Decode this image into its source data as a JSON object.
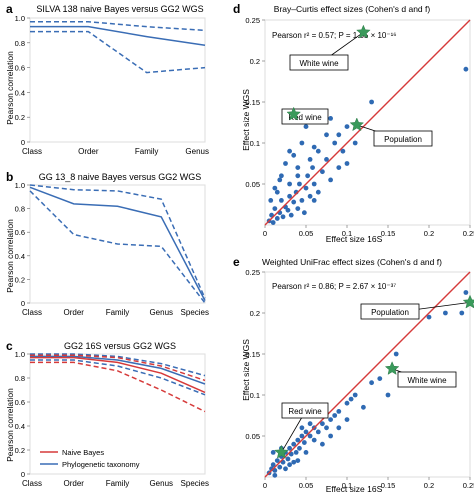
{
  "colors": {
    "blue": "#3a6db5",
    "red": "#d63a3a",
    "dot": "#2f6ab3",
    "star": "#3a9a5b",
    "frame": "#dddddd",
    "grid": "#eeeeee"
  },
  "chart_data": [
    {
      "panel": "a",
      "type": "line",
      "title": "SILVA 138 naive Bayes versus GG2 WGS",
      "ylabel": "Pearson correlation",
      "categories": [
        "Class",
        "Order",
        "Family",
        "Genus"
      ],
      "ylim": [
        0,
        1.0
      ],
      "yticks": [
        "0",
        "0.2",
        "0.4",
        "0.6",
        "0.8",
        "1.0"
      ],
      "series": [
        {
          "group": "phylo",
          "style": "solid",
          "values": [
            0.93,
            0.93,
            0.85,
            0.78
          ]
        },
        {
          "group": "phylo",
          "style": "dashed",
          "values": [
            0.97,
            0.97,
            0.93,
            0.9
          ]
        },
        {
          "group": "phylo",
          "style": "dashed",
          "values": [
            0.89,
            0.89,
            0.56,
            0.6
          ]
        }
      ]
    },
    {
      "panel": "b",
      "type": "line",
      "title": "GG 13_8 naive Bayes versus GG2 WGS",
      "ylabel": "Pearson correlation",
      "categories": [
        "Class",
        "Order",
        "Family",
        "Genus",
        "Species"
      ],
      "ylim": [
        0,
        1.0
      ],
      "yticks": [
        "0",
        "0.2",
        "0.4",
        "0.6",
        "0.8",
        "1.0"
      ],
      "series": [
        {
          "group": "phylo",
          "style": "solid",
          "values": [
            0.98,
            0.84,
            0.82,
            0.73,
            0.02
          ]
        },
        {
          "group": "phylo",
          "style": "dashed",
          "values": [
            1.0,
            0.96,
            0.95,
            0.88,
            0.04
          ]
        },
        {
          "group": "phylo",
          "style": "dashed",
          "values": [
            0.95,
            0.58,
            0.5,
            0.48,
            0.0
          ]
        }
      ]
    },
    {
      "panel": "c",
      "type": "line",
      "title": "GG2 16S versus GG2 WGS",
      "ylabel": "Pearson correlation",
      "categories": [
        "Class",
        "Order",
        "Family",
        "Genus",
        "Species"
      ],
      "ylim": [
        0,
        1.0
      ],
      "yticks": [
        "0",
        "0.2",
        "0.4",
        "0.6",
        "0.8",
        "1.0"
      ],
      "legend": [
        {
          "label": "Naive Bayes",
          "group": "nb"
        },
        {
          "label": "Phylogenetic taxonomy",
          "group": "phylo"
        }
      ],
      "series": [
        {
          "group": "phylo",
          "style": "solid",
          "values": [
            0.98,
            0.98,
            0.95,
            0.88,
            0.75
          ]
        },
        {
          "group": "phylo",
          "style": "dashed",
          "values": [
            1.0,
            1.0,
            0.98,
            0.92,
            0.82
          ]
        },
        {
          "group": "phylo",
          "style": "dashed",
          "values": [
            0.95,
            0.95,
            0.9,
            0.8,
            0.66
          ]
        },
        {
          "group": "nb",
          "style": "solid",
          "values": [
            0.97,
            0.97,
            0.93,
            0.84,
            0.68
          ]
        },
        {
          "group": "nb",
          "style": "dashed",
          "values": [
            0.99,
            0.99,
            0.97,
            0.9,
            0.78
          ]
        },
        {
          "group": "nb",
          "style": "dashed",
          "values": [
            0.93,
            0.93,
            0.86,
            0.7,
            0.52
          ]
        }
      ]
    },
    {
      "panel": "d",
      "type": "scatter",
      "title": "Bray–Curtis effect sizes (Cohen's d and f)",
      "xlabel": "Effect size 16S",
      "ylabel": "Effect size WGS",
      "xlim": [
        0,
        0.25
      ],
      "ylim": [
        0,
        0.25
      ],
      "xticks": [
        0,
        0.05,
        0.1,
        0.15,
        0.2,
        0.25
      ],
      "yticks": [
        0.05,
        0.1,
        0.15,
        0.2,
        0.25
      ],
      "stat_text": "Pearson r² = 0.57; P = 1.35 × 10⁻¹⁶",
      "points": [
        [
          0.005,
          0.005
        ],
        [
          0.008,
          0.012
        ],
        [
          0.01,
          0.003
        ],
        [
          0.012,
          0.02
        ],
        [
          0.015,
          0.008
        ],
        [
          0.018,
          0.015
        ],
        [
          0.02,
          0.03
        ],
        [
          0.022,
          0.01
        ],
        [
          0.025,
          0.022
        ],
        [
          0.028,
          0.018
        ],
        [
          0.03,
          0.035
        ],
        [
          0.032,
          0.012
        ],
        [
          0.035,
          0.028
        ],
        [
          0.038,
          0.04
        ],
        [
          0.04,
          0.02
        ],
        [
          0.042,
          0.05
        ],
        [
          0.045,
          0.03
        ],
        [
          0.048,
          0.015
        ],
        [
          0.05,
          0.045
        ],
        [
          0.052,
          0.06
        ],
        [
          0.055,
          0.035
        ],
        [
          0.058,
          0.07
        ],
        [
          0.06,
          0.05
        ],
        [
          0.065,
          0.04
        ],
        [
          0.07,
          0.065
        ],
        [
          0.075,
          0.08
        ],
        [
          0.08,
          0.055
        ],
        [
          0.085,
          0.1
        ],
        [
          0.09,
          0.07
        ],
        [
          0.095,
          0.09
        ],
        [
          0.1,
          0.075
        ],
        [
          0.02,
          0.06
        ],
        [
          0.025,
          0.075
        ],
        [
          0.03,
          0.09
        ],
        [
          0.035,
          0.085
        ],
        [
          0.012,
          0.045
        ],
        [
          0.018,
          0.055
        ],
        [
          0.045,
          0.1
        ],
        [
          0.05,
          0.12
        ],
        [
          0.06,
          0.095
        ],
        [
          0.075,
          0.11
        ],
        [
          0.08,
          0.13
        ],
        [
          0.13,
          0.15
        ],
        [
          0.245,
          0.19
        ],
        [
          0.1,
          0.12
        ],
        [
          0.06,
          0.03
        ],
        [
          0.007,
          0.03
        ],
        [
          0.015,
          0.04
        ],
        [
          0.04,
          0.07
        ],
        [
          0.055,
          0.08
        ],
        [
          0.065,
          0.09
        ],
        [
          0.11,
          0.1
        ],
        [
          0.09,
          0.11
        ],
        [
          0.03,
          0.05
        ],
        [
          0.04,
          0.06
        ]
      ],
      "regression": [
        [
          0,
          0
        ],
        [
          0.25,
          0.25
        ]
      ],
      "highlights": [
        {
          "label": "White wine",
          "x": 0.12,
          "y": 0.235
        },
        {
          "label": "Red wine",
          "x": 0.035,
          "y": 0.135
        },
        {
          "label": "Population",
          "x": 0.112,
          "y": 0.122
        }
      ]
    },
    {
      "panel": "e",
      "type": "scatter",
      "title": "Weighted UniFrac effect sizes (Cohen's d and f)",
      "xlabel": "Effect size 16S",
      "ylabel": "Effect size WGS",
      "xlim": [
        0,
        0.25
      ],
      "ylim": [
        0,
        0.25
      ],
      "xticks": [
        0,
        0.05,
        0.1,
        0.15,
        0.2,
        0.25
      ],
      "yticks": [
        0.05,
        0.1,
        0.15,
        0.2,
        0.25
      ],
      "stat_text": "Pearson r² = 0.86; P = 2.67 × 10⁻³⁷",
      "points": [
        [
          0.005,
          0.005
        ],
        [
          0.008,
          0.01
        ],
        [
          0.01,
          0.015
        ],
        [
          0.012,
          0.008
        ],
        [
          0.015,
          0.02
        ],
        [
          0.018,
          0.012
        ],
        [
          0.02,
          0.025
        ],
        [
          0.022,
          0.018
        ],
        [
          0.025,
          0.03
        ],
        [
          0.028,
          0.022
        ],
        [
          0.03,
          0.035
        ],
        [
          0.032,
          0.028
        ],
        [
          0.035,
          0.04
        ],
        [
          0.038,
          0.03
        ],
        [
          0.04,
          0.045
        ],
        [
          0.042,
          0.035
        ],
        [
          0.045,
          0.05
        ],
        [
          0.048,
          0.042
        ],
        [
          0.05,
          0.055
        ],
        [
          0.055,
          0.05
        ],
        [
          0.06,
          0.06
        ],
        [
          0.065,
          0.055
        ],
        [
          0.07,
          0.065
        ],
        [
          0.075,
          0.06
        ],
        [
          0.08,
          0.07
        ],
        [
          0.085,
          0.075
        ],
        [
          0.09,
          0.08
        ],
        [
          0.1,
          0.09
        ],
        [
          0.11,
          0.1
        ],
        [
          0.13,
          0.115
        ],
        [
          0.14,
          0.12
        ],
        [
          0.16,
          0.15
        ],
        [
          0.18,
          0.2
        ],
        [
          0.2,
          0.195
        ],
        [
          0.22,
          0.2
        ],
        [
          0.245,
          0.225
        ],
        [
          0.24,
          0.2
        ],
        [
          0.01,
          0.03
        ],
        [
          0.02,
          0.035
        ],
        [
          0.03,
          0.015
        ],
        [
          0.04,
          0.02
        ],
        [
          0.05,
          0.03
        ],
        [
          0.06,
          0.045
        ],
        [
          0.07,
          0.04
        ],
        [
          0.08,
          0.05
        ],
        [
          0.065,
          0.08
        ],
        [
          0.1,
          0.07
        ],
        [
          0.12,
          0.085
        ],
        [
          0.15,
          0.1
        ],
        [
          0.045,
          0.06
        ],
        [
          0.055,
          0.065
        ],
        [
          0.012,
          0.002
        ],
        [
          0.025,
          0.01
        ],
        [
          0.035,
          0.018
        ],
        [
          0.09,
          0.06
        ],
        [
          0.105,
          0.095
        ]
      ],
      "regression": [
        [
          0,
          0
        ],
        [
          0.25,
          0.25
        ]
      ],
      "highlights": [
        {
          "label": "Population",
          "x": 0.25,
          "y": 0.213
        },
        {
          "label": "White wine",
          "x": 0.155,
          "y": 0.132
        },
        {
          "label": "Red wine",
          "x": 0.02,
          "y": 0.03
        }
      ]
    }
  ],
  "panel_letters": {
    "a": "a",
    "b": "b",
    "c": "c",
    "d": "d",
    "e": "e"
  }
}
